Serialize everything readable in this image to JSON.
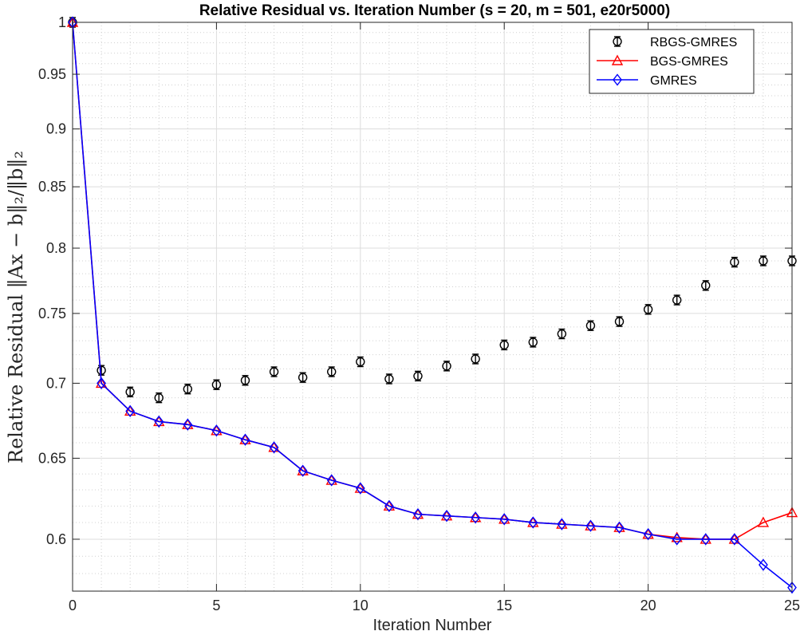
{
  "chart_data": {
    "type": "line",
    "title": "Relative Residual vs. Iteration Number (s = 20, m = 501, e20r5000)",
    "xlabel": "Iteration Number",
    "ylabel": "Relative Residual ||Ax − b||₂/||b||₂",
    "ylabel_display": "Relative Residual ‖Ax − b‖₂/‖b‖₂",
    "xlim": [
      0,
      25
    ],
    "ylim": [
      0.57,
      1.0
    ],
    "y_scale": "log",
    "xticks": [
      0,
      5,
      10,
      15,
      20,
      25
    ],
    "yticks": [
      0.6,
      0.65,
      0.7,
      0.75,
      0.8,
      0.85,
      0.9,
      0.95,
      1
    ],
    "ytick_labels": [
      "0.6",
      "0.65",
      "0.7",
      "0.75",
      "0.8",
      "0.85",
      "0.9",
      "0.95",
      "1"
    ],
    "grid": true,
    "legend_position": "top-right",
    "x": [
      0,
      1,
      2,
      3,
      4,
      5,
      6,
      7,
      8,
      9,
      10,
      11,
      12,
      13,
      14,
      15,
      16,
      17,
      18,
      19,
      20,
      21,
      22,
      23,
      24,
      25
    ],
    "series": [
      {
        "name": "RBGS-GMRES",
        "style": "errorbar-circle",
        "color": "#000000",
        "values": [
          1.0,
          0.709,
          0.694,
          0.69,
          0.696,
          0.699,
          0.702,
          0.708,
          0.704,
          0.708,
          0.715,
          0.703,
          0.705,
          0.712,
          0.717,
          0.727,
          0.729,
          0.735,
          0.741,
          0.744,
          0.753,
          0.76,
          0.771,
          0.789,
          0.79,
          0.79
        ]
      },
      {
        "name": "BGS-GMRES",
        "style": "line-triangle",
        "color": "#ff0000",
        "values": [
          1.0,
          0.7,
          0.681,
          0.674,
          0.672,
          0.668,
          0.662,
          0.657,
          0.642,
          0.636,
          0.631,
          0.62,
          0.615,
          0.614,
          0.613,
          0.612,
          0.61,
          0.609,
          0.608,
          0.607,
          0.603,
          0.601,
          0.6,
          0.6,
          0.61,
          0.616
        ]
      },
      {
        "name": "GMRES",
        "style": "line-diamond",
        "color": "#0000ff",
        "values": [
          1.0,
          0.7,
          0.681,
          0.674,
          0.672,
          0.668,
          0.662,
          0.657,
          0.642,
          0.636,
          0.631,
          0.62,
          0.615,
          0.614,
          0.613,
          0.612,
          0.61,
          0.609,
          0.608,
          0.607,
          0.603,
          0.6,
          0.6,
          0.6,
          0.585,
          0.572
        ]
      }
    ]
  }
}
